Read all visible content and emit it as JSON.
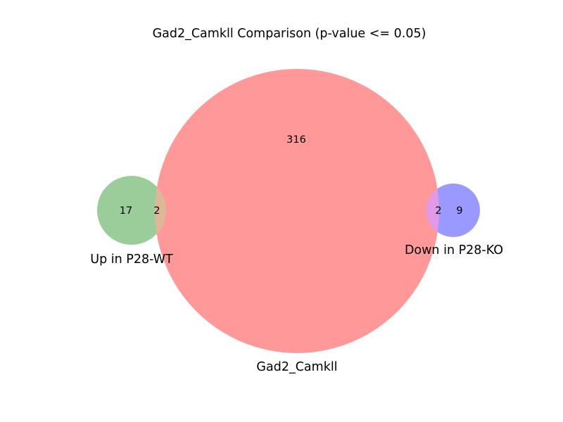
{
  "title": "Gad2_Camkll Comparison (p-value <= 0.05)",
  "sets": {
    "up_wt": {
      "label": "Up in P28-WT",
      "color": "#9acd9a"
    },
    "main": {
      "label": "Gad2_Camkll",
      "color": "#ff9999"
    },
    "down_ko": {
      "label": "Down in P28-KO",
      "color": "#9999ff"
    }
  },
  "overlap_colors": {
    "up_wt_main": "#deb896",
    "main_down_ko": "#e09ae8"
  },
  "counts": {
    "up_wt_only": "17",
    "up_wt_and_main": "2",
    "main_only": "316",
    "main_and_down_ko": "2",
    "down_ko_only": "9"
  }
}
